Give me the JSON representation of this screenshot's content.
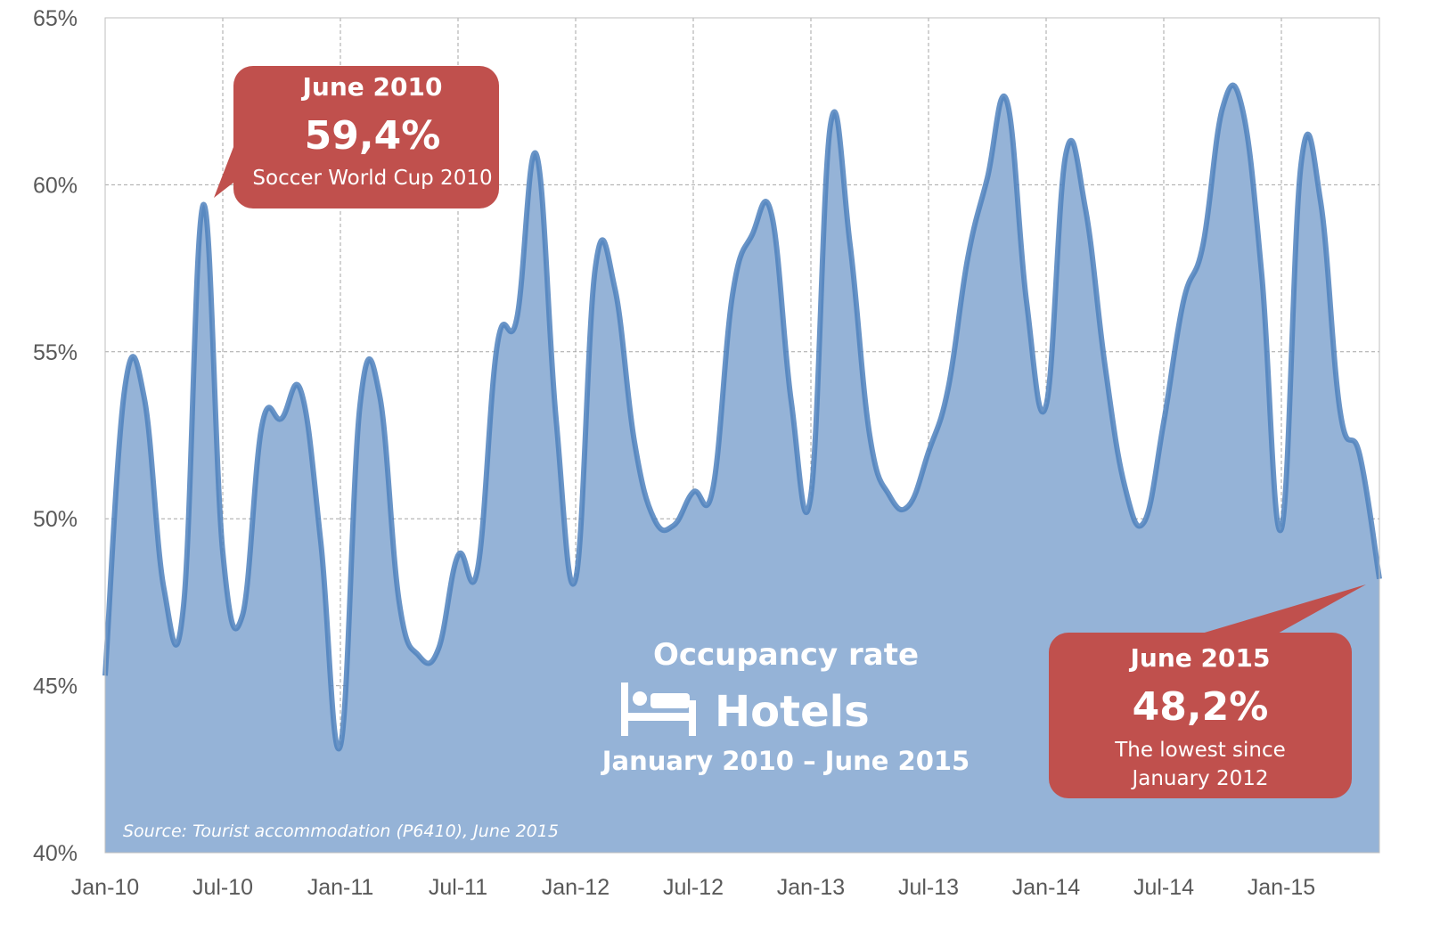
{
  "chart_data": {
    "type": "area",
    "title": "Occupancy rate",
    "subtitle": "Hotels",
    "period": "January 2010 – June 2015",
    "source": "Source: Tourist accommodation (P6410), June 2015",
    "ylim": [
      40,
      65
    ],
    "y_ticks": [
      "40%",
      "45%",
      "50%",
      "55%",
      "60%",
      "65%"
    ],
    "x_ticks": [
      "Jan-10",
      "Jul-10",
      "Jan-11",
      "Jul-11",
      "Jan-12",
      "Jul-12",
      "Jan-13",
      "Jul-13",
      "Jan-14",
      "Jul-14",
      "Jan-15"
    ],
    "grid": true,
    "colors": {
      "fill": "#95b3d7",
      "line": "#4f81bd",
      "callout": "#c0504d",
      "grid": "#a6a6a6"
    },
    "x": [
      "2010-01",
      "2010-02",
      "2010-03",
      "2010-04",
      "2010-05",
      "2010-06",
      "2010-07",
      "2010-08",
      "2010-09",
      "2010-10",
      "2010-11",
      "2010-12",
      "2011-01",
      "2011-02",
      "2011-03",
      "2011-04",
      "2011-05",
      "2011-06",
      "2011-07",
      "2011-08",
      "2011-09",
      "2011-10",
      "2011-11",
      "2011-12",
      "2012-01",
      "2012-02",
      "2012-03",
      "2012-04",
      "2012-05",
      "2012-06",
      "2012-07",
      "2012-08",
      "2012-09",
      "2012-10",
      "2012-11",
      "2012-12",
      "2013-01",
      "2013-02",
      "2013-03",
      "2013-04",
      "2013-05",
      "2013-06",
      "2013-07",
      "2013-08",
      "2013-09",
      "2013-10",
      "2013-11",
      "2013-12",
      "2014-01",
      "2014-02",
      "2014-03",
      "2014-04",
      "2014-05",
      "2014-06",
      "2014-07",
      "2014-08",
      "2014-09",
      "2014-10",
      "2014-11",
      "2014-12",
      "2015-01",
      "2015-02",
      "2015-03",
      "2015-04",
      "2015-05",
      "2015-06"
    ],
    "series": [
      {
        "values": [
          45.3,
          53.9,
          53.6,
          47.9,
          47.4,
          59.4,
          49.0,
          47.1,
          52.8,
          53.0,
          53.8,
          49.3,
          43.2,
          53.4,
          53.7,
          47.5,
          45.9,
          46.1,
          48.9,
          48.5,
          55.2,
          56.0,
          60.9,
          53.0,
          48.2,
          57.5,
          56.9,
          52.3,
          50.0,
          49.8,
          50.8,
          50.9,
          56.7,
          58.5,
          59.1,
          53.5,
          50.7,
          61.8,
          58.2,
          52.5,
          50.7,
          50.4,
          52.0,
          53.9,
          57.8,
          60.2,
          62.5,
          56.5,
          53.4,
          60.9,
          59.3,
          54.6,
          51.0,
          49.9,
          52.9,
          56.5,
          58.2,
          62.3,
          62.3,
          57.3,
          49.7,
          60.6,
          59.5,
          53.2,
          51.9,
          48.2
        ]
      }
    ],
    "annotations": [
      {
        "title": "June 2010",
        "value": "59,4%",
        "note": "Soccer World Cup 2010"
      },
      {
        "title": "June 2015",
        "value": "48,2%",
        "note": "The lowest since",
        "note2": "January 2012"
      }
    ]
  }
}
